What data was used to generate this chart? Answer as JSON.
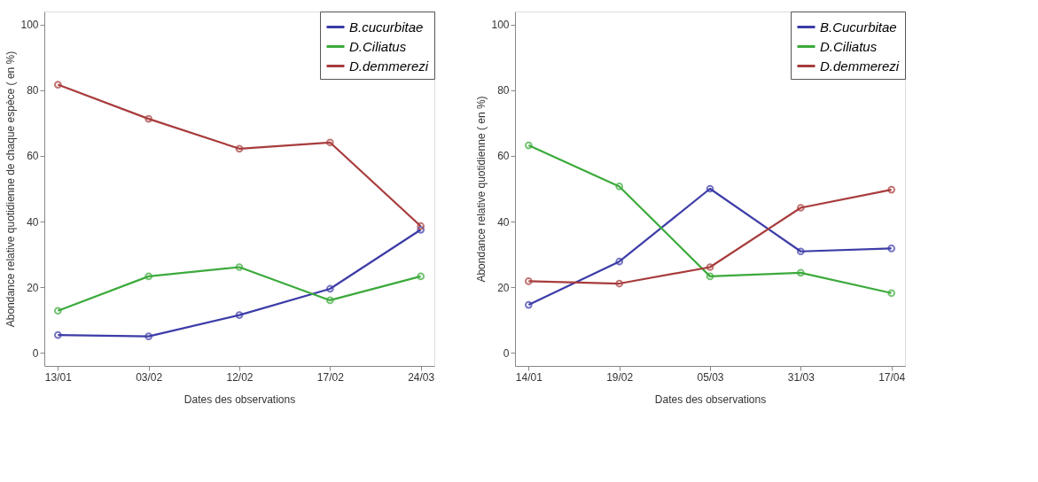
{
  "chart_data": [
    {
      "type": "line",
      "xlabel": "Dates des observations",
      "ylabel": "Abondance relative quotidienne de chaque espèce ( en %)",
      "categories": [
        "13/01",
        "03/02",
        "12/02",
        "17/02",
        "24/03"
      ],
      "ylim": [
        -4,
        104
      ],
      "yticks": [
        0,
        20,
        40,
        60,
        80,
        100
      ],
      "grid": false,
      "legend": "top right",
      "marker": "circle",
      "line_style": "solid",
      "series": [
        {
          "name": "B.cucurbitae",
          "color": "#3c3ca8",
          "values": [
            5.4,
            5.0,
            11.5,
            19.5,
            37.5
          ]
        },
        {
          "name": "D.Ciliatus",
          "color": "#3caa3c",
          "values": [
            12.8,
            23.3,
            26.1,
            16.0,
            23.3
          ]
        },
        {
          "name": "D.demmerezi",
          "color": "#a83c3c",
          "values": [
            81.7,
            71.3,
            62.2,
            64.1,
            38.6
          ]
        }
      ]
    },
    {
      "type": "line",
      "xlabel": "Dates des observations",
      "ylabel": "Abondance relative quotidienne ( en %)",
      "categories": [
        "14/01",
        "19/02",
        "05/03",
        "31/03",
        "17/04"
      ],
      "ylim": [
        -4,
        104
      ],
      "yticks": [
        0,
        20,
        40,
        60,
        80,
        100
      ],
      "grid": false,
      "legend": "top right",
      "marker": "circle",
      "line_style": "solid",
      "series": [
        {
          "name": "B.Cucurbitae",
          "color": "#3c3ca8",
          "values": [
            14.6,
            27.8,
            50.0,
            30.9,
            31.8
          ]
        },
        {
          "name": "D.Ciliatus",
          "color": "#3caa3c",
          "values": [
            63.2,
            50.7,
            23.3,
            24.4,
            18.2
          ]
        },
        {
          "name": "D.demmerezi",
          "color": "#a83c3c",
          "values": [
            21.8,
            21.1,
            26.1,
            44.2,
            49.7
          ]
        }
      ]
    }
  ]
}
